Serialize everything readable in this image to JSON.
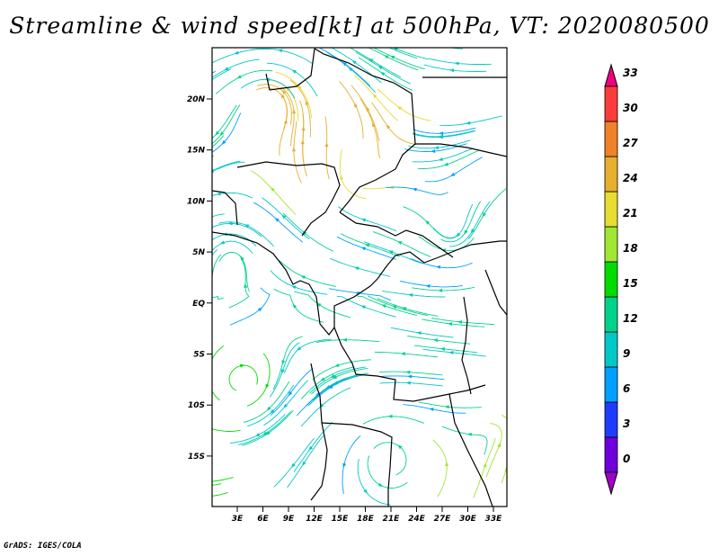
{
  "title": "Streamline & wind speed[kt] at 500hPa, VT: 2020080500",
  "credit": "GrADS: IGES/COLA",
  "map": {
    "lat_ticks": [
      "20N",
      "15N",
      "10N",
      "5N",
      "EQ",
      "5S",
      "10S",
      "15S"
    ],
    "lon_ticks": [
      "3E",
      "6E",
      "9E",
      "12E",
      "15E",
      "18E",
      "21E",
      "24E",
      "27E",
      "30E",
      "33E"
    ]
  },
  "colorbar": {
    "labels": [
      "0",
      "3",
      "6",
      "9",
      "12",
      "15",
      "18",
      "21",
      "24",
      "27",
      "30",
      "33"
    ],
    "colors": [
      "#a000c8",
      "#6e00dc",
      "#1e3cff",
      "#00a0ff",
      "#00c8c8",
      "#00d28c",
      "#00dc00",
      "#a0e632",
      "#e6dc32",
      "#e6af2d",
      "#f08228",
      "#fa3c3c",
      "#f00082"
    ]
  }
}
